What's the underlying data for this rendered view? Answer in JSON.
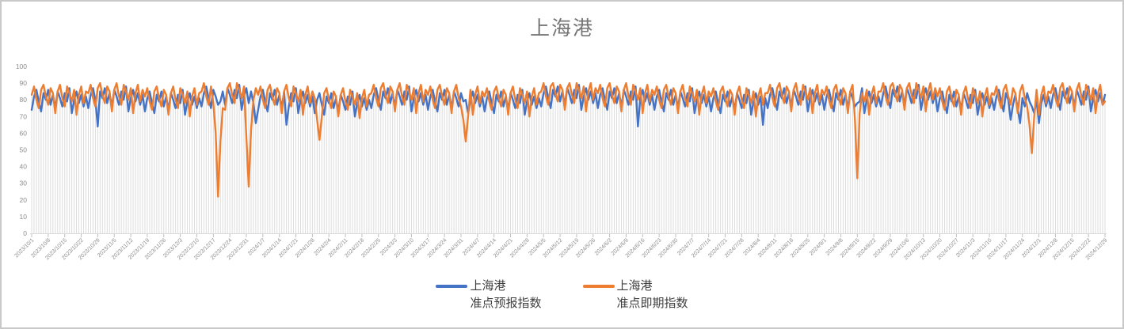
{
  "window": {
    "background": "#ffffff",
    "border_color": "#c9c9c9"
  },
  "chart": {
    "title": "上海港",
    "title_color": "#757575"
  },
  "legend": {
    "items": [
      {
        "line1": "上海港",
        "line2": "准点预报指数",
        "color": "#4472C4"
      },
      {
        "line1": "上海港",
        "line2": "准点即期指数",
        "color": "#ED7D31"
      }
    ]
  },
  "chart_data": {
    "type": "line",
    "title": "上海港",
    "xlabel": "",
    "ylabel": "",
    "ylim": [
      0,
      100
    ],
    "ytick_step": 10,
    "grid": "vertical-drop-lines",
    "legend_position": "bottom",
    "x_tick_interval_days": 7,
    "x_total_points": 456,
    "x_tick_labels": [
      "2023/10/1",
      "2023/10/8",
      "2023/10/15",
      "2023/10/22",
      "2023/10/29",
      "2023/11/5",
      "2023/11/12",
      "2023/11/19",
      "2023/11/26",
      "2023/12/3",
      "2023/12/10",
      "2023/12/17",
      "2023/12/24",
      "2023/12/31",
      "2024/1/7",
      "2024/1/14",
      "2024/1/21",
      "2024/1/28",
      "2024/2/4",
      "2024/2/11",
      "2024/2/18",
      "2024/2/25",
      "2024/3/3",
      "2024/3/10",
      "2024/3/17",
      "2024/3/24",
      "2024/3/31",
      "2024/4/7",
      "2024/4/14",
      "2024/4/21",
      "2024/4/28",
      "2024/5/5",
      "2024/5/12",
      "2024/5/19",
      "2024/5/26",
      "2024/6/2",
      "2024/6/9",
      "2024/6/16",
      "2024/6/23",
      "2024/6/30",
      "2024/7/7",
      "2024/7/14",
      "2024/7/21",
      "2024/7/28",
      "2024/8/4",
      "2024/8/11",
      "2024/8/18",
      "2024/8/25",
      "2024/9/1",
      "2024/9/8",
      "2024/9/15",
      "2024/9/22",
      "2024/9/29",
      "2024/10/6",
      "2024/10/13",
      "2024/10/20",
      "2024/10/27",
      "2024/11/3",
      "2024/11/10",
      "2024/11/17",
      "2024/11/24",
      "2024/12/1",
      "2024/12/8",
      "2024/12/15",
      "2024/12/22",
      "2024/12/29"
    ],
    "series": [
      {
        "name": "上海港 准点预报指数",
        "color": "#4472C4",
        "values": [
          74,
          82,
          86,
          79,
          73,
          84,
          80,
          86,
          77,
          83,
          75,
          85,
          81,
          76,
          84,
          79,
          87,
          72,
          80,
          85,
          78,
          83,
          76,
          82,
          75,
          83,
          87,
          80,
          64,
          85,
          81,
          87,
          78,
          84,
          76,
          86,
          82,
          77,
          85,
          80,
          88,
          73,
          81,
          86,
          79,
          84,
          77,
          83,
          73,
          81,
          85,
          78,
          72,
          83,
          79,
          85,
          76,
          82,
          74,
          84,
          80,
          75,
          83,
          78,
          86,
          71,
          79,
          84,
          77,
          82,
          75,
          81,
          76,
          84,
          88,
          81,
          75,
          86,
          82,
          77,
          79,
          85,
          77,
          87,
          83,
          78,
          86,
          81,
          89,
          74,
          82,
          87,
          78,
          85,
          78,
          66,
          74,
          82,
          86,
          79,
          73,
          84,
          80,
          86,
          77,
          83,
          75,
          85,
          65,
          76,
          84,
          79,
          87,
          72,
          80,
          85,
          78,
          83,
          76,
          82,
          72,
          80,
          84,
          77,
          71,
          82,
          78,
          84,
          75,
          81,
          73,
          83,
          79,
          74,
          82,
          77,
          85,
          70,
          78,
          83,
          76,
          81,
          74,
          80,
          75,
          83,
          87,
          80,
          74,
          85,
          81,
          87,
          78,
          84,
          76,
          86,
          82,
          77,
          85,
          80,
          88,
          73,
          81,
          86,
          79,
          84,
          77,
          83,
          74,
          82,
          86,
          79,
          73,
          84,
          80,
          86,
          77,
          83,
          75,
          85,
          81,
          76,
          84,
          79,
          80,
          72,
          80,
          85,
          78,
          83,
          76,
          82,
          73,
          81,
          85,
          78,
          72,
          83,
          79,
          85,
          76,
          82,
          74,
          84,
          80,
          75,
          83,
          78,
          86,
          71,
          79,
          84,
          77,
          82,
          75,
          81,
          76,
          84,
          88,
          81,
          75,
          86,
          82,
          88,
          79,
          85,
          77,
          87,
          83,
          78,
          86,
          81,
          89,
          74,
          82,
          87,
          80,
          85,
          78,
          84,
          75,
          83,
          87,
          80,
          74,
          85,
          81,
          87,
          78,
          84,
          76,
          86,
          82,
          77,
          85,
          80,
          88,
          64,
          81,
          86,
          79,
          84,
          77,
          83,
          74,
          82,
          86,
          79,
          73,
          84,
          80,
          86,
          77,
          83,
          75,
          85,
          81,
          76,
          84,
          79,
          87,
          72,
          80,
          85,
          78,
          83,
          76,
          82,
          73,
          81,
          85,
          78,
          72,
          83,
          79,
          85,
          76,
          82,
          74,
          84,
          80,
          75,
          83,
          78,
          86,
          71,
          79,
          84,
          77,
          82,
          65,
          81,
          75,
          83,
          87,
          80,
          74,
          85,
          81,
          87,
          78,
          84,
          76,
          86,
          82,
          77,
          85,
          80,
          88,
          73,
          81,
          86,
          79,
          84,
          77,
          83,
          74,
          82,
          86,
          79,
          73,
          84,
          80,
          86,
          77,
          83,
          75,
          85,
          81,
          76,
          78,
          79,
          87,
          72,
          80,
          85,
          78,
          83,
          76,
          82,
          76,
          84,
          88,
          81,
          75,
          86,
          82,
          88,
          79,
          85,
          77,
          87,
          83,
          78,
          86,
          81,
          89,
          74,
          82,
          87,
          80,
          85,
          78,
          84,
          73,
          81,
          85,
          78,
          72,
          83,
          79,
          85,
          76,
          82,
          74,
          84,
          80,
          75,
          83,
          78,
          86,
          71,
          79,
          84,
          77,
          82,
          75,
          81,
          74,
          82,
          86,
          79,
          73,
          84,
          80,
          68,
          77,
          83,
          75,
          66,
          81,
          76,
          84,
          79,
          76,
          72,
          80,
          66,
          78,
          83,
          76,
          82,
          75,
          83,
          87,
          80,
          74,
          85,
          81,
          87,
          78,
          84,
          76,
          86,
          82,
          77,
          85,
          80,
          88,
          73,
          81,
          86,
          79,
          84,
          77,
          83
        ]
      },
      {
        "name": "上海港 准点即期指数",
        "color": "#ED7D31",
        "values": [
          83,
          88,
          80,
          75,
          86,
          89,
          82,
          77,
          87,
          84,
          72,
          85,
          89,
          81,
          76,
          88,
          84,
          79,
          86,
          71,
          83,
          88,
          78,
          85,
          84,
          89,
          81,
          76,
          87,
          90,
          83,
          78,
          88,
          85,
          73,
          86,
          90,
          82,
          77,
          89,
          85,
          80,
          87,
          72,
          84,
          89,
          79,
          86,
          82,
          87,
          79,
          74,
          85,
          88,
          81,
          76,
          86,
          83,
          71,
          84,
          88,
          80,
          75,
          87,
          83,
          78,
          85,
          70,
          82,
          87,
          77,
          84,
          85,
          90,
          82,
          77,
          88,
          78,
          60,
          22,
          55,
          75,
          74,
          87,
          90,
          83,
          78,
          90,
          86,
          81,
          88,
          58,
          28,
          62,
          80,
          87,
          83,
          88,
          80,
          75,
          86,
          89,
          82,
          77,
          87,
          84,
          72,
          85,
          89,
          81,
          76,
          88,
          84,
          79,
          86,
          71,
          83,
          88,
          78,
          85,
          81,
          68,
          56,
          70,
          84,
          87,
          80,
          75,
          85,
          82,
          70,
          83,
          87,
          79,
          74,
          86,
          82,
          77,
          84,
          69,
          81,
          86,
          76,
          83,
          84,
          89,
          81,
          76,
          87,
          90,
          83,
          78,
          88,
          85,
          73,
          86,
          90,
          82,
          77,
          89,
          85,
          80,
          87,
          72,
          84,
          89,
          79,
          86,
          83,
          88,
          80,
          75,
          86,
          89,
          82,
          77,
          87,
          84,
          72,
          85,
          89,
          81,
          76,
          68,
          55,
          70,
          86,
          71,
          83,
          88,
          78,
          85,
          82,
          87,
          79,
          74,
          85,
          88,
          81,
          76,
          86,
          83,
          71,
          84,
          88,
          80,
          75,
          87,
          83,
          78,
          85,
          70,
          82,
          87,
          77,
          84,
          85,
          90,
          82,
          77,
          88,
          90,
          84,
          79,
          89,
          86,
          74,
          87,
          90,
          83,
          78,
          90,
          86,
          81,
          88,
          73,
          85,
          90,
          80,
          87,
          84,
          89,
          81,
          76,
          87,
          90,
          83,
          78,
          88,
          85,
          73,
          86,
          90,
          82,
          77,
          89,
          85,
          80,
          87,
          72,
          84,
          89,
          79,
          86,
          83,
          88,
          80,
          75,
          86,
          89,
          82,
          77,
          87,
          84,
          72,
          85,
          89,
          81,
          76,
          88,
          84,
          79,
          86,
          71,
          83,
          88,
          78,
          85,
          82,
          87,
          79,
          74,
          85,
          88,
          81,
          76,
          86,
          83,
          71,
          84,
          88,
          80,
          75,
          87,
          83,
          78,
          85,
          70,
          82,
          87,
          77,
          84,
          84,
          89,
          81,
          76,
          87,
          90,
          83,
          78,
          88,
          85,
          73,
          86,
          90,
          82,
          77,
          89,
          85,
          80,
          87,
          72,
          84,
          89,
          79,
          86,
          83,
          88,
          80,
          75,
          86,
          89,
          82,
          77,
          87,
          84,
          72,
          85,
          89,
          68,
          33,
          72,
          84,
          79,
          86,
          71,
          83,
          88,
          78,
          85,
          85,
          90,
          82,
          77,
          88,
          90,
          84,
          79,
          89,
          86,
          74,
          87,
          90,
          83,
          78,
          90,
          86,
          81,
          88,
          73,
          85,
          90,
          80,
          87,
          82,
          87,
          79,
          74,
          85,
          88,
          81,
          76,
          86,
          83,
          71,
          84,
          88,
          80,
          75,
          87,
          83,
          78,
          85,
          70,
          82,
          87,
          77,
          84,
          83,
          88,
          80,
          75,
          86,
          89,
          82,
          77,
          87,
          84,
          72,
          85,
          89,
          81,
          76,
          65,
          48,
          70,
          86,
          71,
          83,
          88,
          78,
          85,
          84,
          89,
          81,
          76,
          87,
          90,
          83,
          78,
          88,
          85,
          73,
          86,
          90,
          82,
          77,
          89,
          85,
          80,
          87,
          72,
          84,
          89,
          77,
          79
        ]
      }
    ]
  }
}
